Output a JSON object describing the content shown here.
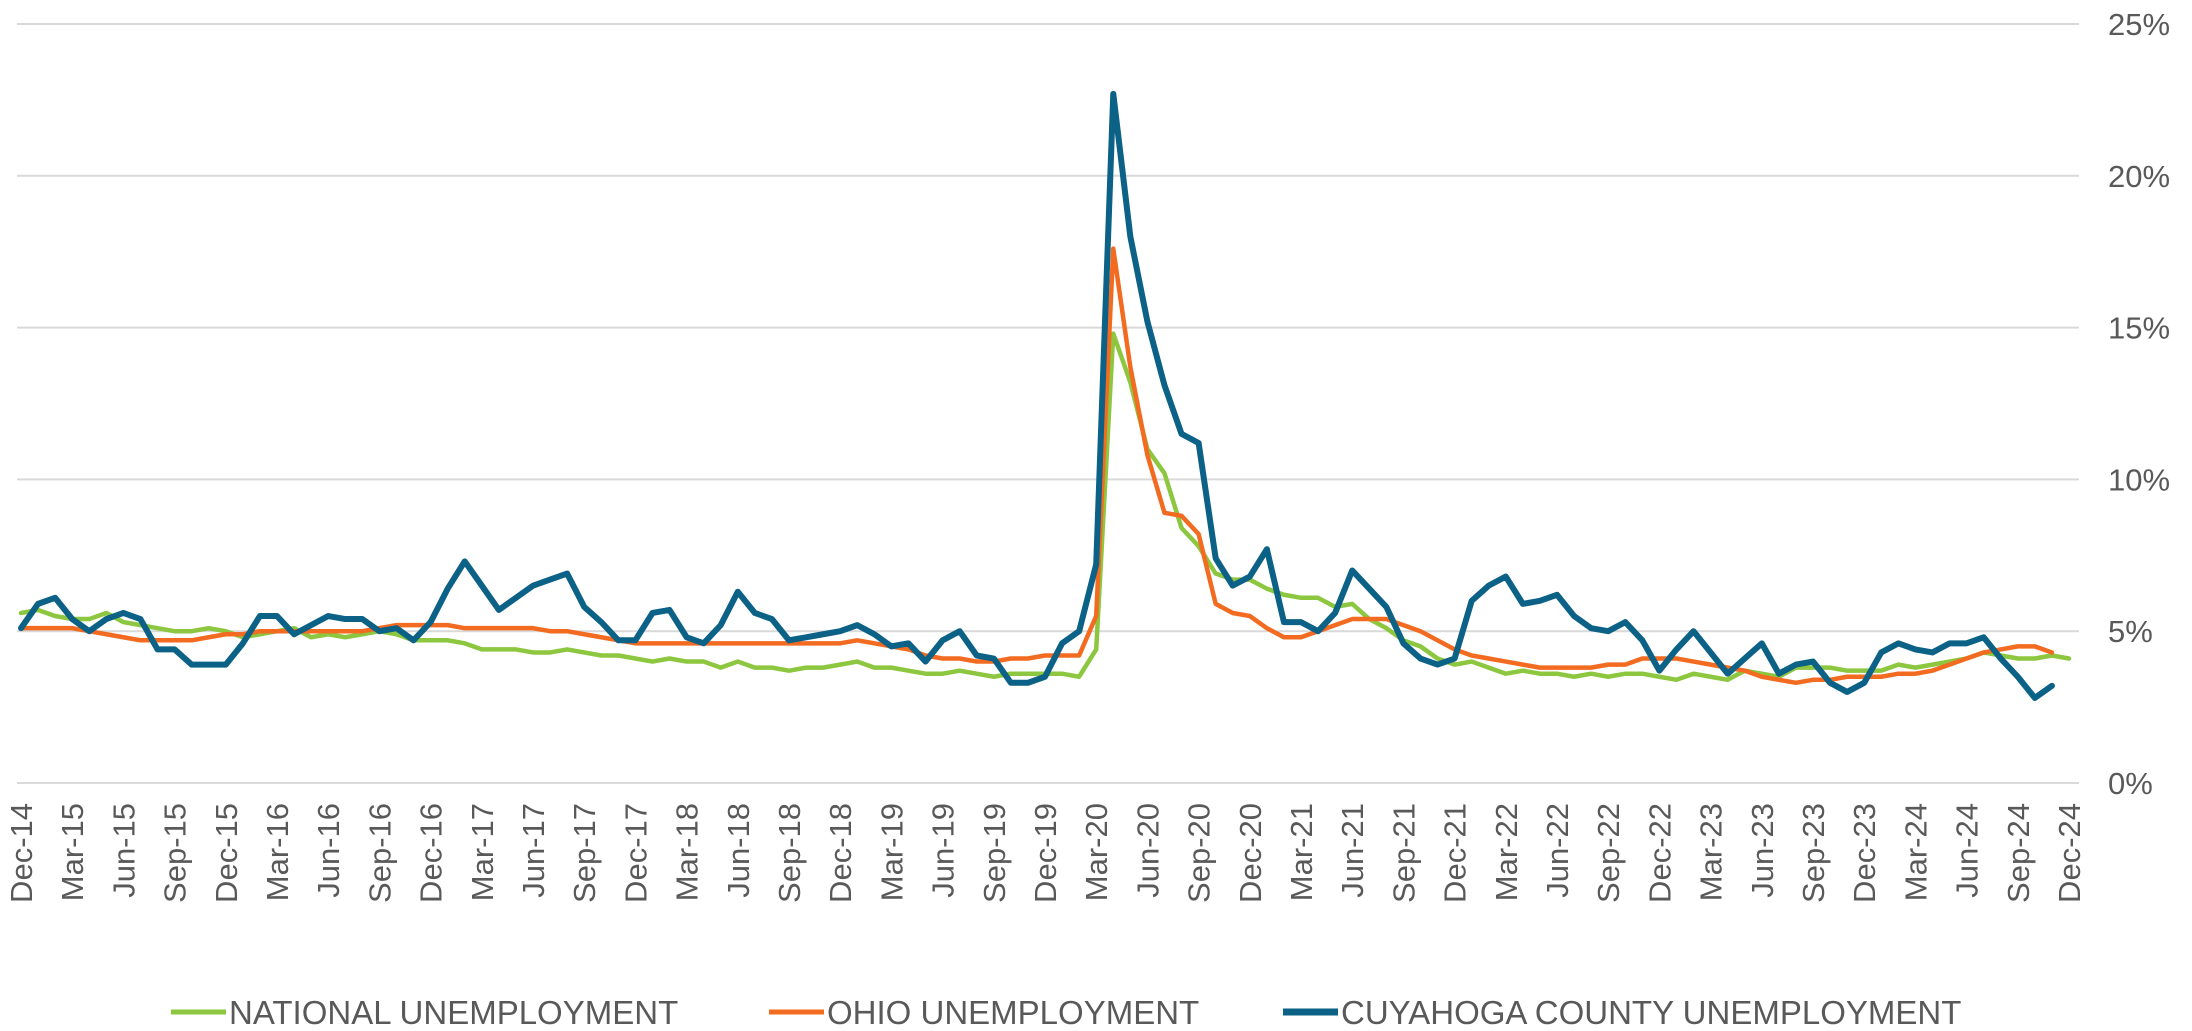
{
  "chart_data": {
    "type": "line",
    "categories": [
      "Dec-14",
      null,
      null,
      "Mar-15",
      null,
      null,
      "Jun-15",
      null,
      null,
      "Sep-15",
      null,
      null,
      "Dec-15",
      null,
      null,
      "Mar-16",
      null,
      null,
      "Jun-16",
      null,
      null,
      "Sep-16",
      null,
      null,
      "Dec-16",
      null,
      null,
      "Mar-17",
      null,
      null,
      "Jun-17",
      null,
      null,
      "Sep-17",
      null,
      null,
      "Dec-17",
      null,
      null,
      "Mar-18",
      null,
      null,
      "Jun-18",
      null,
      null,
      "Sep-18",
      null,
      null,
      "Dec-18",
      null,
      null,
      "Mar-19",
      null,
      null,
      "Jun-19",
      null,
      null,
      "Sep-19",
      null,
      null,
      "Dec-19",
      null,
      null,
      "Mar-20",
      null,
      null,
      "Jun-20",
      null,
      null,
      "Sep-20",
      null,
      null,
      "Dec-20",
      null,
      null,
      "Mar-21",
      null,
      null,
      "Jun-21",
      null,
      null,
      "Sep-21",
      null,
      null,
      "Dec-21",
      null,
      null,
      "Mar-22",
      null,
      null,
      "Jun-22",
      null,
      null,
      "Sep-22",
      null,
      null,
      "Dec-22",
      null,
      null,
      "Mar-23",
      null,
      null,
      "Jun-23",
      null,
      null,
      "Sep-23",
      null,
      null,
      "Dec-23",
      null,
      null,
      "Mar-24",
      null,
      null,
      "Jun-24",
      null,
      null,
      "Sep-24",
      null,
      null,
      "Dec-24"
    ],
    "series": [
      {
        "name": "NATIONAL UNEMPLOYMENT",
        "color": "#8dc63f",
        "values": [
          5.6,
          5.7,
          5.5,
          5.4,
          5.4,
          5.6,
          5.3,
          5.2,
          5.1,
          5.0,
          5.0,
          5.1,
          5.0,
          4.8,
          4.9,
          5.0,
          5.1,
          4.8,
          4.9,
          4.8,
          4.9,
          5.0,
          4.9,
          4.7,
          4.7,
          4.7,
          4.6,
          4.4,
          4.4,
          4.4,
          4.3,
          4.3,
          4.4,
          4.3,
          4.2,
          4.2,
          4.1,
          4.0,
          4.1,
          4.0,
          4.0,
          3.8,
          4.0,
          3.8,
          3.8,
          3.7,
          3.8,
          3.8,
          3.9,
          4.0,
          3.8,
          3.8,
          3.7,
          3.6,
          3.6,
          3.7,
          3.6,
          3.5,
          3.6,
          3.6,
          3.6,
          3.6,
          3.5,
          4.4,
          14.8,
          13.2,
          11.0,
          10.2,
          8.4,
          7.8,
          6.9,
          6.7,
          6.7,
          6.4,
          6.2,
          6.1,
          6.1,
          5.8,
          5.9,
          5.4,
          5.1,
          4.7,
          4.5,
          4.1,
          3.9,
          4.0,
          3.8,
          3.6,
          3.7,
          3.6,
          3.6,
          3.5,
          3.6,
          3.5,
          3.6,
          3.6,
          3.5,
          3.4,
          3.6,
          3.5,
          3.4,
          3.7,
          3.6,
          3.5,
          3.8,
          3.8,
          3.8,
          3.7,
          3.7,
          3.7,
          3.9,
          3.8,
          3.9,
          4.0,
          4.1,
          4.3,
          4.2,
          4.1,
          4.1,
          4.2,
          4.1
        ]
      },
      {
        "name": "OHIO UNEMPLOYMENT",
        "color": "#f26b21",
        "values": [
          5.1,
          5.1,
          5.1,
          5.1,
          5.0,
          4.9,
          4.8,
          4.7,
          4.7,
          4.7,
          4.7,
          4.8,
          4.9,
          4.9,
          5.0,
          5.0,
          5.0,
          5.0,
          5.0,
          5.0,
          5.0,
          5.1,
          5.2,
          5.2,
          5.2,
          5.2,
          5.1,
          5.1,
          5.1,
          5.1,
          5.1,
          5.0,
          5.0,
          4.9,
          4.8,
          4.7,
          4.6,
          4.6,
          4.6,
          4.6,
          4.6,
          4.6,
          4.6,
          4.6,
          4.6,
          4.6,
          4.6,
          4.6,
          4.6,
          4.7,
          4.6,
          4.5,
          4.4,
          4.2,
          4.1,
          4.1,
          4.0,
          4.0,
          4.1,
          4.1,
          4.2,
          4.2,
          4.2,
          5.5,
          17.6,
          13.7,
          10.8,
          8.9,
          8.8,
          8.2,
          5.9,
          5.6,
          5.5,
          5.1,
          4.8,
          4.8,
          5.0,
          5.2,
          5.4,
          5.4,
          5.4,
          5.2,
          5.0,
          4.7,
          4.4,
          4.2,
          4.1,
          4.0,
          3.9,
          3.8,
          3.8,
          3.8,
          3.8,
          3.9,
          3.9,
          4.1,
          4.1,
          4.1,
          4.0,
          3.9,
          3.8,
          3.7,
          3.5,
          3.4,
          3.3,
          3.4,
          3.4,
          3.5,
          3.5,
          3.5,
          3.6,
          3.6,
          3.7,
          3.9,
          4.1,
          4.3,
          4.4,
          4.5,
          4.5,
          4.3,
          null
        ]
      },
      {
        "name": "CUYAHOGA COUNTY UNEMPLOYMENT",
        "color": "#0b6186",
        "values": [
          5.1,
          5.9,
          6.1,
          5.4,
          5.0,
          5.4,
          5.6,
          5.4,
          4.4,
          4.4,
          3.9,
          3.9,
          3.9,
          4.6,
          5.5,
          5.5,
          4.9,
          5.2,
          5.5,
          5.4,
          5.4,
          5.0,
          5.1,
          4.7,
          5.3,
          6.4,
          7.3,
          6.5,
          5.7,
          6.1,
          6.5,
          6.7,
          6.9,
          5.8,
          5.3,
          4.7,
          4.7,
          5.6,
          5.7,
          4.8,
          4.6,
          5.2,
          6.3,
          5.6,
          5.4,
          4.7,
          4.8,
          4.9,
          5.0,
          5.2,
          4.9,
          4.5,
          4.6,
          4.0,
          4.7,
          5.0,
          4.2,
          4.1,
          3.3,
          3.3,
          3.5,
          4.6,
          5.0,
          7.2,
          22.7,
          18.0,
          15.2,
          13.1,
          11.5,
          11.2,
          7.4,
          6.5,
          6.8,
          7.7,
          5.3,
          5.3,
          5.0,
          5.6,
          7.0,
          6.4,
          5.8,
          4.6,
          4.1,
          3.9,
          4.1,
          6.0,
          6.5,
          6.8,
          5.9,
          6.0,
          6.2,
          5.5,
          5.1,
          5.0,
          5.3,
          4.7,
          3.7,
          4.4,
          5.0,
          4.3,
          3.6,
          4.1,
          4.6,
          3.6,
          3.9,
          4.0,
          3.3,
          3.0,
          3.3,
          4.3,
          4.6,
          4.4,
          4.3,
          4.6,
          4.6,
          4.8,
          4.1,
          3.5,
          2.8,
          3.2,
          null
        ]
      }
    ],
    "ylim": [
      0,
      25
    ],
    "yticks": [
      {
        "value": 0,
        "label": "0%"
      },
      {
        "value": 5,
        "label": "5%"
      },
      {
        "value": 10,
        "label": "10%"
      },
      {
        "value": 15,
        "label": "15%"
      },
      {
        "value": 20,
        "label": "20%"
      },
      {
        "value": 25,
        "label": "25%"
      }
    ],
    "grid": true,
    "legend": "bottom"
  }
}
